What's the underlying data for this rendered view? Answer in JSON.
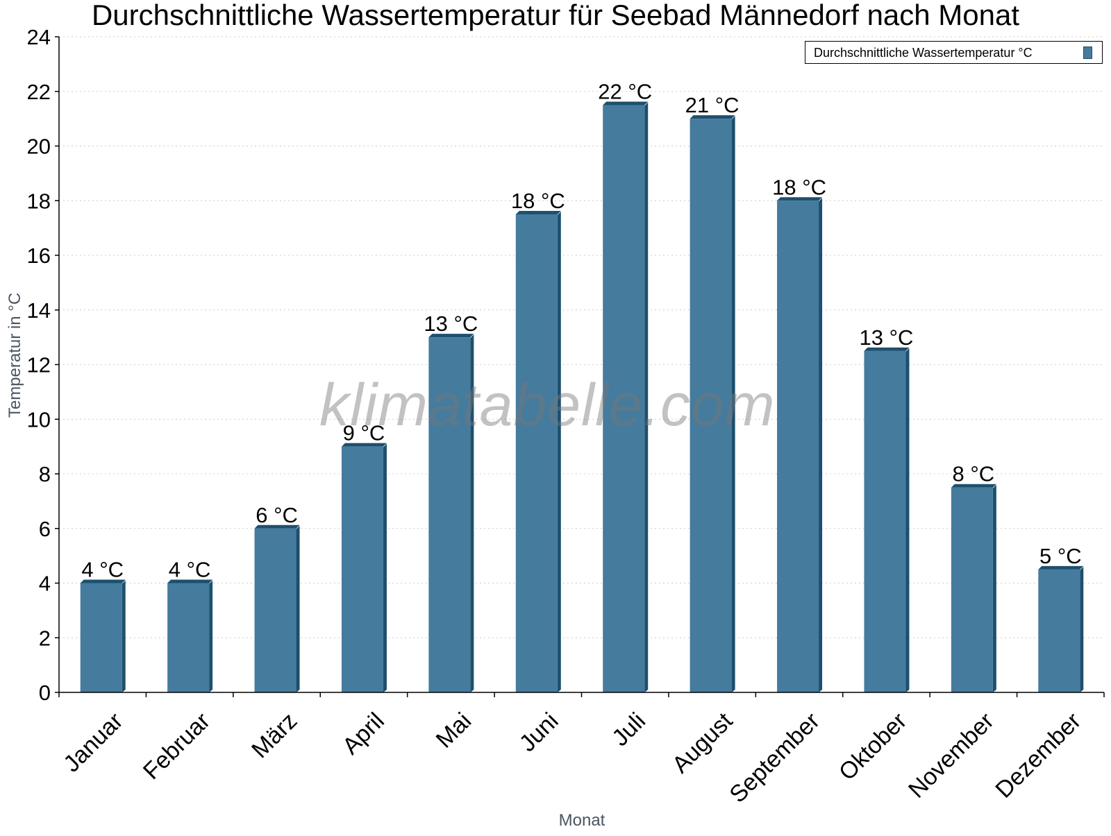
{
  "chart_data": {
    "type": "bar",
    "title": "Durchschnittliche Wassertemperatur für Seebad Männedorf nach Monat",
    "xlabel": "Monat",
    "ylabel": "Temperatur in °C",
    "ylim": [
      0,
      24
    ],
    "yticks": [
      "0",
      "2",
      "4",
      "6",
      "8",
      "10",
      "12",
      "14",
      "16",
      "18",
      "20",
      "22",
      "24"
    ],
    "grid": true,
    "legend_position": "top-right",
    "categories": [
      "Januar",
      "Februar",
      "März",
      "April",
      "Mai",
      "Juni",
      "Juli",
      "August",
      "September",
      "Oktober",
      "November",
      "Dezember"
    ],
    "series": [
      {
        "name": "Durchschnittliche Wassertemperatur °C",
        "values": [
          4,
          4,
          6,
          9,
          13,
          17.5,
          21.5,
          21,
          18,
          12.5,
          7.5,
          4.5
        ],
        "labels": [
          "4 °C",
          "4 °C",
          "6 °C",
          "9 °C",
          "13 °C",
          "18 °C",
          "22 °C",
          "21 °C",
          "18 °C",
          "13 °C",
          "8 °C",
          "5 °C"
        ]
      }
    ],
    "colors": {
      "bar": "#457b9d",
      "bar_edge": "#1d4f6e",
      "grid": "#cccccc"
    }
  },
  "watermark": "klimatabelle.com"
}
